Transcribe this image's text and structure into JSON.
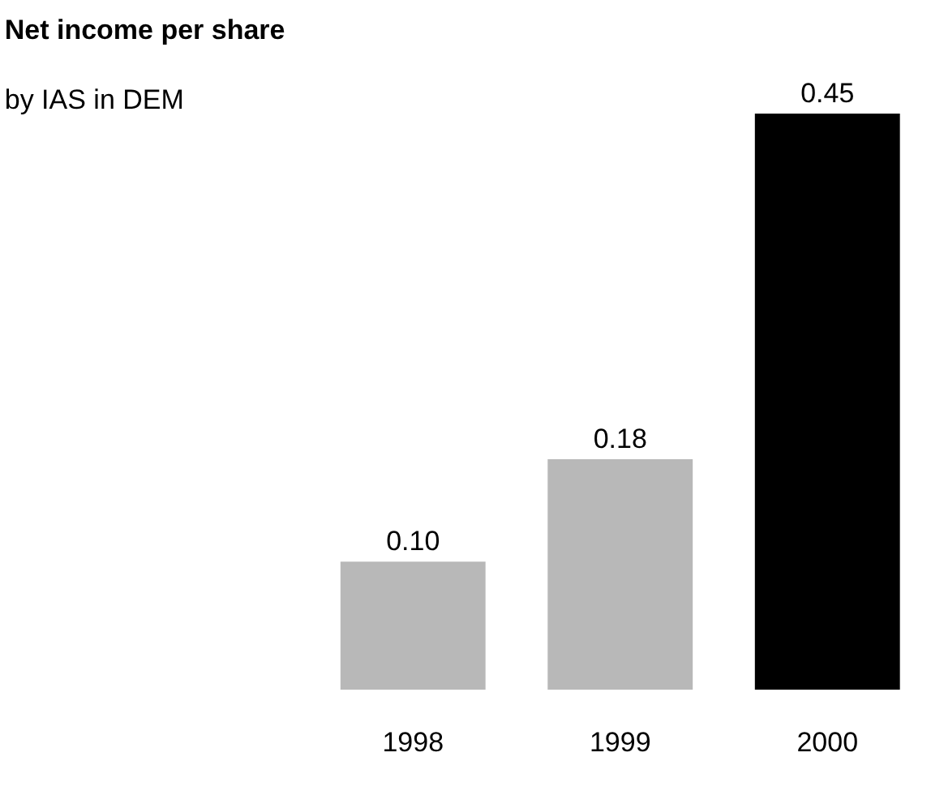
{
  "chart_data": {
    "type": "bar",
    "title": "Net income per share",
    "subtitle": "by IAS in DEM",
    "categories": [
      "1998",
      "1999",
      "2000"
    ],
    "values": [
      0.1,
      0.18,
      0.45
    ],
    "value_labels": [
      "0.10",
      "0.18",
      "0.45"
    ],
    "colors": [
      "#b8b8b8",
      "#b8b8b8",
      "#000000"
    ]
  }
}
